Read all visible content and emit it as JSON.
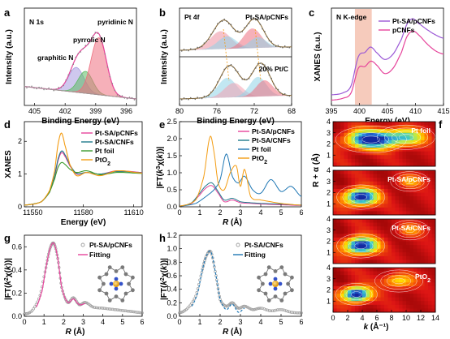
{
  "chart_data": [
    {
      "id": "a",
      "panel_label": "a",
      "type": "line",
      "title": "N 1s",
      "xlabel": "Binding Energy (eV)",
      "ylabel": "Intensity (a.u.)",
      "xlim": [
        406,
        395
      ],
      "xticks": [
        405,
        402,
        399,
        396
      ],
      "yticks": [],
      "annotations": [
        "pyridinic N",
        "pyrrolic N",
        "graphitic N"
      ],
      "series": [
        {
          "name": "graphitic N",
          "kind": "peak",
          "center": 400.9,
          "height": 0.34,
          "width": 0.75,
          "color": "#a79be0"
        },
        {
          "name": "pyrrolic N",
          "kind": "peak",
          "center": 400.0,
          "height": 0.3,
          "width": 0.7,
          "color": "#5dbb63"
        },
        {
          "name": "pyridinic N",
          "kind": "peak",
          "center": 398.7,
          "height": 0.78,
          "width": 0.75,
          "color": "#ee6f80"
        }
      ]
    },
    {
      "id": "b",
      "panel_label": "b",
      "type": "line",
      "xlabel": "Binding Energy (eV)",
      "ylabel": "Intensity (a.u.)",
      "xlim": [
        80,
        68
      ],
      "xticks": [
        80,
        76,
        72,
        68
      ],
      "yticks": [],
      "subpanels": [
        {
          "title": "Pt 4f",
          "legend": "Pt-SA/pCNFs",
          "peaks": [
            {
              "center": 75.6,
              "height": 0.5,
              "width": 1.1,
              "color": "#ee8fa0"
            },
            {
              "center": 74.9,
              "height": 0.35,
              "width": 1.0,
              "color": "#8fd3e8"
            },
            {
              "center": 72.2,
              "height": 0.55,
              "width": 0.95,
              "color": "#ee6f80"
            },
            {
              "center": 71.6,
              "height": 0.3,
              "width": 0.9,
              "color": "#8fd3e8"
            }
          ]
        },
        {
          "title": "",
          "legend": "20% Pt/C",
          "peaks": [
            {
              "center": 74.9,
              "height": 0.55,
              "width": 1.0,
              "color": "#8fd3e8"
            },
            {
              "center": 74.2,
              "height": 0.4,
              "width": 1.0,
              "color": "#f4a0b0"
            },
            {
              "center": 71.6,
              "height": 0.55,
              "width": 0.9,
              "color": "#8fd3e8"
            },
            {
              "center": 70.9,
              "height": 0.45,
              "width": 0.9,
              "color": "#ee6f80"
            }
          ]
        }
      ]
    },
    {
      "id": "c",
      "panel_label": "c",
      "type": "line",
      "title": "N K-edge",
      "xlabel": "Energy (eV)",
      "ylabel": "XANES (a.u.)",
      "xlim": [
        395,
        415
      ],
      "xticks": [
        395,
        400,
        405,
        410,
        415
      ],
      "yticks": [],
      "highlight": [
        399.2,
        402.2
      ],
      "highlight_color": "#f3b9a5",
      "series": [
        {
          "name": "Pt-SA/pCNFs",
          "color": "#9b59d6",
          "x": [
            395,
            397,
            398.5,
            399.8,
            401,
            402,
            403,
            404.5,
            406,
            407.5,
            408.5,
            409.5,
            410.5,
            412,
            413.5,
            415
          ],
          "y": [
            0.12,
            0.14,
            0.22,
            0.55,
            0.6,
            0.66,
            0.6,
            0.52,
            0.58,
            0.75,
            0.92,
            0.98,
            0.93,
            0.86,
            0.8,
            0.76
          ]
        },
        {
          "name": "pCNFs",
          "color": "#e6449b",
          "x": [
            395,
            397,
            398.5,
            399.8,
            401,
            402,
            403,
            404.5,
            406,
            407.5,
            408.5,
            409.5,
            410.5,
            412,
            413.5,
            415
          ],
          "y": [
            0.06,
            0.08,
            0.14,
            0.42,
            0.44,
            0.5,
            0.46,
            0.36,
            0.42,
            0.6,
            0.78,
            0.84,
            0.8,
            0.7,
            0.62,
            0.58
          ]
        }
      ]
    },
    {
      "id": "d",
      "panel_label": "d",
      "type": "line",
      "xlabel": "Energy (eV)",
      "ylabel": "XANES",
      "xlim": [
        11545,
        11615
      ],
      "ylim": [
        0,
        2.6
      ],
      "xticks": [
        11550,
        11580,
        11610
      ],
      "yticks": [
        0,
        1,
        2
      ],
      "series": [
        {
          "name": "Pt-SA/pCNFs",
          "color": "#e6449b",
          "x": [
            11545,
            11555,
            11560,
            11563,
            11565,
            11567,
            11569,
            11572,
            11576,
            11582,
            11590,
            11600,
            11615
          ],
          "y": [
            0.05,
            0.15,
            0.45,
            0.9,
            1.4,
            1.65,
            1.55,
            1.25,
            1.0,
            1.05,
            1.0,
            1.1,
            1.05
          ]
        },
        {
          "name": "Pt-SA/CNFs",
          "color": "#1f7a8c",
          "x": [
            11545,
            11555,
            11560,
            11563,
            11565,
            11567,
            11569,
            11572,
            11576,
            11582,
            11590,
            11600,
            11615
          ],
          "y": [
            0.05,
            0.15,
            0.45,
            0.95,
            1.45,
            1.7,
            1.6,
            1.28,
            1.02,
            1.05,
            1.0,
            1.08,
            1.04
          ]
        },
        {
          "name": "Pt foil",
          "color": "#3c9a2e",
          "x": [
            11545,
            11555,
            11560,
            11563,
            11565,
            11567,
            11569,
            11572,
            11576,
            11582,
            11590,
            11600,
            11615
          ],
          "y": [
            0.05,
            0.15,
            0.45,
            0.85,
            1.2,
            1.35,
            1.3,
            1.15,
            1.05,
            1.1,
            0.98,
            1.05,
            1.02
          ]
        },
        {
          "name": "PtO2",
          "color": "#f39c12",
          "x": [
            11545,
            11555,
            11560,
            11563,
            11565,
            11567,
            11569,
            11572,
            11576,
            11582,
            11590,
            11600,
            11615
          ],
          "y": [
            0.05,
            0.15,
            0.5,
            1.1,
            1.9,
            2.25,
            1.9,
            1.3,
            0.95,
            1.05,
            0.95,
            1.1,
            1.03
          ]
        }
      ],
      "legend_labels": [
        "Pt-SA/pCNFs",
        "Pt-SA/CNFs",
        "Pt foil",
        "PtO",
        "2"
      ]
    },
    {
      "id": "e",
      "panel_label": "e",
      "type": "line",
      "xlabel_main": "R",
      "xlabel_unit": "(Å)",
      "ylabel": "|FT(k3χ(k))|",
      "xlim": [
        0,
        6
      ],
      "ylim": [
        0,
        2.5
      ],
      "xticks": [
        0,
        1,
        2,
        3,
        4,
        5,
        6
      ],
      "yticks": [
        0.0,
        0.5,
        1.0,
        1.5,
        2.0,
        2.5
      ],
      "series": [
        {
          "name": "Pt-SA/pCNFs",
          "color": "#e6449b",
          "x": [
            0,
            0.6,
            1.0,
            1.3,
            1.6,
            1.9,
            2.2,
            2.6,
            3.0,
            3.5,
            4.0,
            5.0,
            6.0
          ],
          "y": [
            0.02,
            0.1,
            0.35,
            0.55,
            0.62,
            0.4,
            0.15,
            0.2,
            0.12,
            0.1,
            0.08,
            0.06,
            0.04
          ]
        },
        {
          "name": "Pt-SA/CNFs",
          "color": "#1f7a8c",
          "x": [
            0,
            0.6,
            1.0,
            1.3,
            1.6,
            1.9,
            2.2,
            2.6,
            3.0,
            3.5,
            4.0,
            5.0,
            6.0
          ],
          "y": [
            0.02,
            0.12,
            0.4,
            0.62,
            0.7,
            0.45,
            0.2,
            0.25,
            0.15,
            0.12,
            0.1,
            0.08,
            0.05
          ]
        },
        {
          "name": "Pt foil",
          "color": "#1f77b4",
          "x": [
            0,
            0.8,
            1.3,
            1.7,
            2.0,
            2.3,
            2.6,
            2.9,
            3.2,
            3.6,
            4.0,
            4.5,
            5.0,
            5.5,
            6.0
          ],
          "y": [
            0.02,
            0.1,
            0.3,
            0.5,
            0.8,
            1.55,
            0.9,
            0.7,
            0.9,
            0.5,
            0.4,
            0.8,
            0.45,
            0.6,
            0.3
          ]
        },
        {
          "name": "PtO2",
          "color": "#f39c12",
          "x": [
            0,
            0.8,
            1.2,
            1.5,
            1.7,
            1.9,
            2.2,
            2.5,
            2.8,
            3.0,
            3.2,
            3.5,
            4.0,
            5.0,
            6.0
          ],
          "y": [
            0.02,
            0.2,
            0.9,
            2.05,
            1.6,
            0.7,
            0.5,
            1.0,
            1.2,
            0.6,
            1.1,
            0.3,
            0.2,
            0.1,
            0.05
          ]
        }
      ],
      "legend_labels": [
        "Pt-SA/pCNFs",
        "Pt-SA/CNFs",
        "Pt foil",
        "PtO",
        "2"
      ]
    },
    {
      "id": "f",
      "panel_label": "f",
      "type": "heatmap",
      "xlabel_main": "k",
      "xlabel_unit": "(Å⁻¹)",
      "ylabel": "R + α (Å)",
      "xlim": [
        0,
        14
      ],
      "ylim": [
        0,
        4
      ],
      "xticks": [
        0,
        2,
        4,
        6,
        8,
        10,
        12,
        14
      ],
      "yticks": [
        1,
        2,
        3,
        4
      ],
      "subpanels": [
        {
          "label": "Pt foil",
          "peaks": [
            {
              "k": 5.2,
              "r": 2.4,
              "sk": 2.2,
              "sr": 0.55,
              "a": 1.0
            },
            {
              "k": 10,
              "r": 2.6,
              "sk": 1.8,
              "sr": 0.5,
              "a": 0.55
            }
          ]
        },
        {
          "label": "Pt-SA/pCNFs",
          "peaks": [
            {
              "k": 3.8,
              "r": 1.6,
              "sk": 1.5,
              "sr": 0.5,
              "a": 1.0
            },
            {
              "k": 10.5,
              "r": 3.0,
              "sk": 1.2,
              "sr": 0.4,
              "a": 0.25
            }
          ]
        },
        {
          "label": "Pt-SA/CNFs",
          "peaks": [
            {
              "k": 3.8,
              "r": 1.6,
              "sk": 1.5,
              "sr": 0.5,
              "a": 1.0
            },
            {
              "k": 10.5,
              "r": 3.0,
              "sk": 1.2,
              "sr": 0.4,
              "a": 0.22
            }
          ]
        },
        {
          "label": "PtO",
          "label_sub": "2",
          "peaks": [
            {
              "k": 3.2,
              "r": 1.6,
              "sk": 1.3,
              "sr": 0.45,
              "a": 1.0
            },
            {
              "k": 9,
              "r": 2.8,
              "sk": 1.5,
              "sr": 0.45,
              "a": 0.35
            }
          ]
        }
      ]
    },
    {
      "id": "g",
      "panel_label": "g",
      "type": "line",
      "xlabel_main": "R",
      "xlabel_unit": "(Å)",
      "ylabel": "|FT(k2χ(k))|",
      "xlim": [
        0,
        6
      ],
      "ylim": [
        0,
        0.7
      ],
      "xticks": [
        0,
        1,
        2,
        3,
        4,
        5,
        6
      ],
      "yticks": [
        0.0,
        0.2,
        0.4,
        0.6
      ],
      "series": [
        {
          "name": "Pt-SA/pCNFs",
          "kind": "scatter",
          "color": "#9e9e9e",
          "x": [
            0,
            0.4,
            0.8,
            1.1,
            1.3,
            1.5,
            1.7,
            1.9,
            2.2,
            2.5,
            2.8,
            3.1,
            3.5,
            4.0,
            4.5,
            5.0,
            5.5,
            6.0
          ],
          "y": [
            0.02,
            0.05,
            0.18,
            0.42,
            0.58,
            0.63,
            0.5,
            0.25,
            0.12,
            0.16,
            0.1,
            0.12,
            0.08,
            0.07,
            0.06,
            0.05,
            0.04,
            0.03
          ]
        },
        {
          "name": "Fitting",
          "kind": "line",
          "color": "#e6449b",
          "x": [
            0.6,
            0.9,
            1.1,
            1.3,
            1.5,
            1.7,
            1.9,
            2.2,
            2.5,
            2.8,
            3.1
          ],
          "y": [
            0.08,
            0.22,
            0.42,
            0.58,
            0.63,
            0.5,
            0.25,
            0.12,
            0.15,
            0.1,
            0.11
          ]
        }
      ]
    },
    {
      "id": "h",
      "panel_label": "h",
      "type": "line",
      "xlabel_main": "R",
      "xlabel_unit": "(Å)",
      "ylabel": "|FT(k2χ(k))|",
      "xlim": [
        0,
        6
      ],
      "ylim": [
        0,
        1.2
      ],
      "xticks": [
        0,
        1,
        2,
        3,
        4,
        5,
        6
      ],
      "yticks": [
        0.0,
        0.2,
        0.4,
        0.6,
        0.8,
        1.0,
        1.2
      ],
      "series": [
        {
          "name": "Pt-SA/CNFs",
          "kind": "scatter",
          "color": "#9e9e9e",
          "x": [
            0,
            0.4,
            0.8,
            1.1,
            1.3,
            1.55,
            1.8,
            2.0,
            2.3,
            2.6,
            2.9,
            3.2,
            3.6,
            4.0,
            4.5,
            5.0,
            5.5,
            6.0
          ],
          "y": [
            0.05,
            0.12,
            0.3,
            0.65,
            0.88,
            0.95,
            0.6,
            0.25,
            0.15,
            0.2,
            0.12,
            0.15,
            0.1,
            0.12,
            0.08,
            0.1,
            0.06,
            0.05
          ]
        },
        {
          "name": "Fitting",
          "kind": "line",
          "color": "#1f77b4",
          "x": [
            0.6,
            0.9,
            1.1,
            1.3,
            1.55,
            1.8,
            2.0,
            2.3,
            2.6,
            2.9,
            3.2
          ],
          "y": [
            0.15,
            0.35,
            0.65,
            0.88,
            0.95,
            0.6,
            0.25,
            0.1,
            0.18,
            0.06,
            0.12
          ]
        }
      ]
    }
  ]
}
